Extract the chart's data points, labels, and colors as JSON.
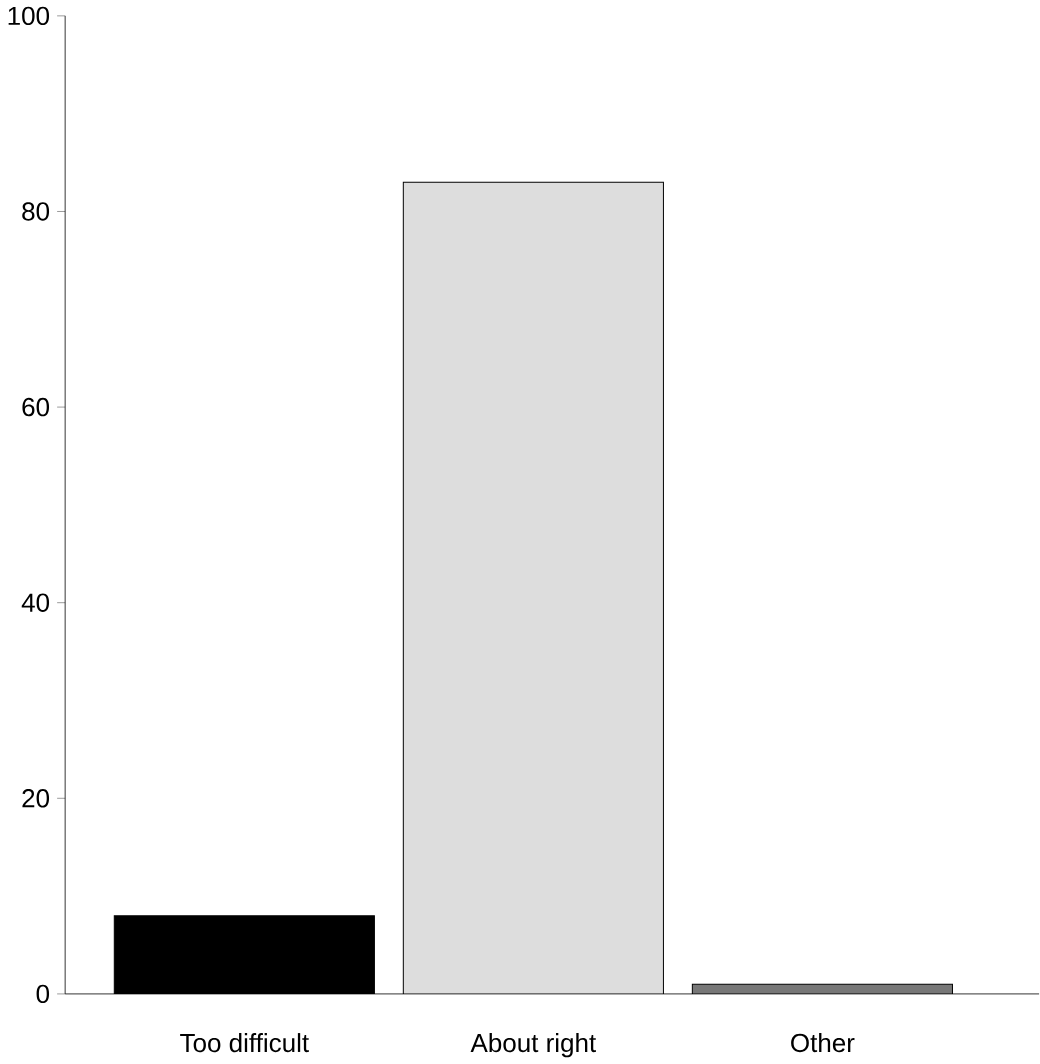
{
  "chart_data": {
    "type": "bar",
    "categories": [
      "Too difficult",
      "About right",
      "Other"
    ],
    "values": [
      8,
      83,
      1
    ],
    "colors": [
      "#000000",
      "#dddddd",
      "#777777"
    ],
    "ylim": [
      0,
      100
    ],
    "yticks": [
      0,
      20,
      40,
      60,
      80,
      100
    ],
    "grid": false
  }
}
